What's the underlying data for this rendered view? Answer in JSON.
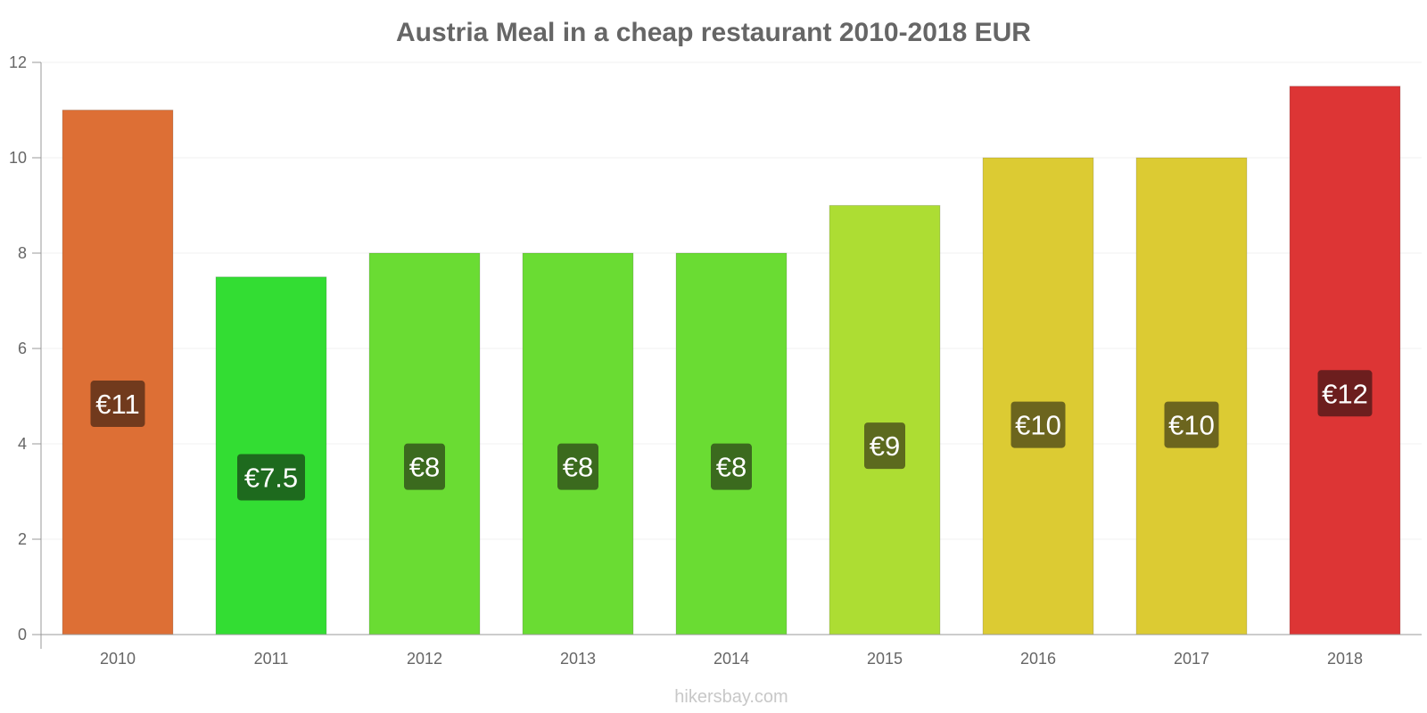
{
  "chart_data": {
    "type": "bar",
    "title": "Austria Meal in a cheap restaurant 2010-2018 EUR",
    "categories": [
      "2010",
      "2011",
      "2012",
      "2013",
      "2014",
      "2015",
      "2016",
      "2017",
      "2018"
    ],
    "values": [
      11,
      7.5,
      8,
      8,
      8,
      9,
      10,
      10,
      11.5
    ],
    "data_labels": [
      "€11",
      "€7.5",
      "€8",
      "€8",
      "€8",
      "€9",
      "€10",
      "€10",
      "€12"
    ],
    "bar_colors": [
      "#dd6f35",
      "#33dd33",
      "#6adc33",
      "#6adc33",
      "#6adc33",
      "#addd33",
      "#dccb33",
      "#dccb33",
      "#dd3535"
    ],
    "label_box_colors": [
      "#713a1d",
      "#1e6a1e",
      "#3b6a1e",
      "#3b6a1e",
      "#3b6a1e",
      "#5c6a1e",
      "#6c651e",
      "#6c651e",
      "#6c1e1e"
    ],
    "y_ticks": [
      "0",
      "2",
      "4",
      "6",
      "8",
      "10",
      "12"
    ],
    "ylim": [
      0,
      12
    ],
    "xlabel": "",
    "ylabel": "",
    "grid": true,
    "legend": "none"
  },
  "watermark": "hikersbay.com"
}
